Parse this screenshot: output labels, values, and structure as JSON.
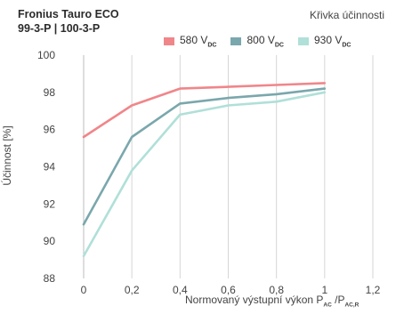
{
  "header": {
    "title_line1": "Fronius Tauro ECO",
    "title_line2": "99-3-P | 100-3-P",
    "subtitle": "Křivka účinnosti"
  },
  "chart_data": {
    "type": "line",
    "title": "Fronius Tauro ECO 99-3-P | 100-3-P",
    "subtitle": "Křivka účinnosti",
    "ylabel": "Účinnost [%]",
    "xlabel": "Normovaný výstupní výkon PAC /PAC,R",
    "xlabel_parts": {
      "pre": "Normovaný výstupní výkon P",
      "sub1": "AC",
      "mid": " /P",
      "sub2": "AC,R"
    },
    "x_ticks": [
      "0",
      "0,2",
      "0,4",
      "0,6",
      "0,8",
      "1",
      "1,2"
    ],
    "y_ticks": [
      "88",
      "90",
      "92",
      "94",
      "96",
      "98",
      "100"
    ],
    "xlim": [
      0,
      1.2
    ],
    "ylim": [
      88,
      100
    ],
    "grid": "vertical",
    "legend_position": "top",
    "series": [
      {
        "name": "580 VDC",
        "label_main": "580 V",
        "label_sub": "DC",
        "color": "#f0868a",
        "x": [
          0,
          0.2,
          0.4,
          0.6,
          0.8,
          1.0
        ],
        "y": [
          95.6,
          97.3,
          98.2,
          98.3,
          98.4,
          98.5
        ]
      },
      {
        "name": "800 VDC",
        "label_main": "800 V",
        "label_sub": "DC",
        "color": "#7aa7ad",
        "x": [
          0,
          0.2,
          0.4,
          0.6,
          0.8,
          1.0
        ],
        "y": [
          90.9,
          95.6,
          97.4,
          97.7,
          97.9,
          98.2
        ]
      },
      {
        "name": "930 VDC",
        "label_main": "930 V",
        "label_sub": "DC",
        "color": "#b0e0d8",
        "x": [
          0,
          0.2,
          0.4,
          0.6,
          0.8,
          1.0
        ],
        "y": [
          89.2,
          93.8,
          96.8,
          97.3,
          97.5,
          98.0
        ]
      }
    ]
  }
}
